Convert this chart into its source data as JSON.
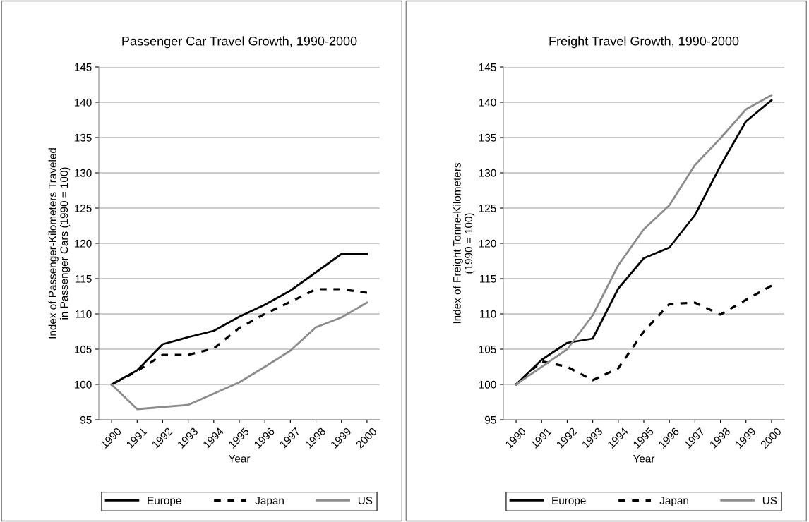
{
  "chart_data": [
    {
      "type": "line",
      "title": "Passenger Car Travel Growth, 1990-2000",
      "xlabel": "Year",
      "ylabel": "Index of Passenger-Kilometers Traveled\nin Passenger Cars (1990 = 100)",
      "categories": [
        "1990",
        "1991",
        "1992",
        "1993",
        "1994",
        "1995",
        "1996",
        "1997",
        "1998",
        "1999",
        "2000"
      ],
      "ylim": [
        95,
        145
      ],
      "yticks": [
        95,
        100,
        105,
        110,
        115,
        120,
        125,
        130,
        135,
        140,
        145
      ],
      "grid": "y",
      "legend": "bottom",
      "marker": "none",
      "series": [
        {
          "name": "Europe",
          "color": "#000000",
          "line_style": "solid",
          "values": [
            100,
            102,
            105.7,
            106.7,
            107.6,
            109.6,
            111.3,
            113.3,
            115.9,
            118.5,
            118.5
          ]
        },
        {
          "name": "Japan",
          "color": "#000000",
          "line_style": "dashed",
          "values": [
            100,
            101.9,
            104.2,
            104.2,
            105.1,
            108,
            110,
            111.7,
            113.5,
            113.5,
            113
          ]
        },
        {
          "name": "US",
          "color": "#8c8c8c",
          "line_style": "solid",
          "values": [
            100,
            96.5,
            96.8,
            97.1,
            98.7,
            100.3,
            102.5,
            104.8,
            108.1,
            109.5,
            111.6
          ]
        }
      ]
    },
    {
      "type": "line",
      "title": "Freight Travel Growth, 1990-2000",
      "xlabel": "Year",
      "ylabel": "Index of Freight Tonne-Kilometers\n(1990 = 100)",
      "categories": [
        "1990",
        "1991",
        "1992",
        "1993",
        "1994",
        "1995",
        "1996",
        "1997",
        "1998",
        "1999",
        "2000"
      ],
      "ylim": [
        95,
        145
      ],
      "yticks": [
        95,
        100,
        105,
        110,
        115,
        120,
        125,
        130,
        135,
        140,
        145
      ],
      "grid": "y",
      "legend": "bottom",
      "marker": "none",
      "series": [
        {
          "name": "Europe",
          "color": "#000000",
          "line_style": "solid",
          "values": [
            100,
            103.5,
            105.9,
            106.5,
            113.6,
            117.9,
            119.4,
            124,
            131,
            137.3,
            140.3
          ]
        },
        {
          "name": "Japan",
          "color": "#000000",
          "line_style": "dashed",
          "values": [
            100,
            103.3,
            102.5,
            100.6,
            102.3,
            107.5,
            111.4,
            111.6,
            109.9,
            112,
            114
          ]
        },
        {
          "name": "US",
          "color": "#8c8c8c",
          "line_style": "solid",
          "values": [
            100,
            102.5,
            105,
            109.8,
            116.9,
            122,
            125.4,
            131.1,
            134.9,
            139,
            141
          ]
        }
      ]
    }
  ]
}
